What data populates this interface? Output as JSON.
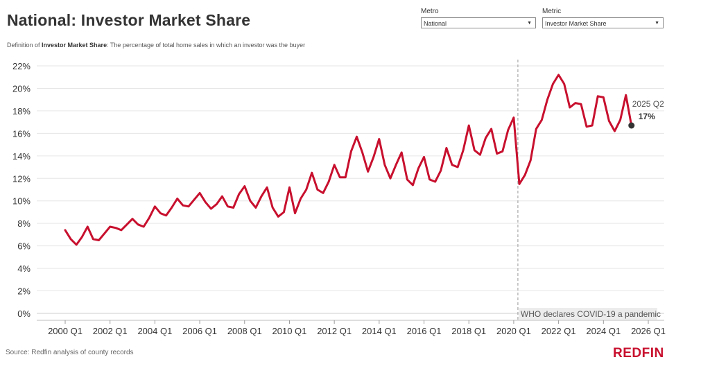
{
  "header": {
    "title": "National: Investor Market Share",
    "definition_prefix": "Definition of ",
    "definition_term": "Investor Market Share",
    "definition_text": ": The percentage of total home sales in which an investor was the buyer"
  },
  "filters": {
    "metro": {
      "label": "Metro",
      "value": "National"
    },
    "metric": {
      "label": "Metric",
      "value": "Investor Market Share"
    }
  },
  "footer": {
    "source": "Source: Redfin analysis of county records",
    "logo": "REDFIN"
  },
  "colors": {
    "line": "#c8102e",
    "grid": "#e6e6e6",
    "text": "#333333",
    "annotation_bg": "#ececec"
  },
  "chart_data": {
    "type": "line",
    "title": "National: Investor Market Share",
    "xlabel": "",
    "ylabel": "",
    "ylim": [
      0,
      22
    ],
    "yticks": [
      0,
      2,
      4,
      6,
      8,
      10,
      12,
      14,
      16,
      18,
      20,
      22
    ],
    "ytick_labels": [
      "0%",
      "2%",
      "4%",
      "6%",
      "8%",
      "10%",
      "12%",
      "14%",
      "16%",
      "18%",
      "20%",
      "22%"
    ],
    "xlim": [
      2000.0,
      2026.0
    ],
    "xticks": [
      2000,
      2002,
      2004,
      2006,
      2008,
      2010,
      2012,
      2014,
      2016,
      2018,
      2020,
      2022,
      2024,
      2026
    ],
    "xtick_labels": [
      "2000 Q1",
      "2002 Q1",
      "2004 Q1",
      "2006 Q1",
      "2008 Q1",
      "2010 Q1",
      "2012 Q1",
      "2014 Q1",
      "2016 Q1",
      "2018 Q1",
      "2020 Q1",
      "2022 Q1",
      "2024 Q1",
      "2026 Q1"
    ],
    "grid": true,
    "series": [
      {
        "name": "",
        "color": "#c8102e",
        "x": [
          2000.0,
          2000.25,
          2000.5,
          2000.75,
          2001.0,
          2001.25,
          2001.5,
          2001.75,
          2002.0,
          2002.25,
          2002.5,
          2002.75,
          2003.0,
          2003.25,
          2003.5,
          2003.75,
          2004.0,
          2004.25,
          2004.5,
          2004.75,
          2005.0,
          2005.25,
          2005.5,
          2005.75,
          2006.0,
          2006.25,
          2006.5,
          2006.75,
          2007.0,
          2007.25,
          2007.5,
          2007.75,
          2008.0,
          2008.25,
          2008.5,
          2008.75,
          2009.0,
          2009.25,
          2009.5,
          2009.75,
          2010.0,
          2010.25,
          2010.5,
          2010.75,
          2011.0,
          2011.25,
          2011.5,
          2011.75,
          2012.0,
          2012.25,
          2012.5,
          2012.75,
          2013.0,
          2013.25,
          2013.5,
          2013.75,
          2014.0,
          2014.25,
          2014.5,
          2014.75,
          2015.0,
          2015.25,
          2015.5,
          2015.75,
          2016.0,
          2016.25,
          2016.5,
          2016.75,
          2017.0,
          2017.25,
          2017.5,
          2017.75,
          2018.0,
          2018.25,
          2018.5,
          2018.75,
          2019.0,
          2019.25,
          2019.5,
          2019.75,
          2020.0,
          2020.25,
          2020.5,
          2020.75,
          2021.0,
          2021.25,
          2021.5,
          2021.75,
          2022.0,
          2022.25,
          2022.5,
          2022.75,
          2023.0,
          2023.25,
          2023.5,
          2023.75,
          2024.0,
          2024.25,
          2024.5,
          2024.75,
          2025.0,
          2025.25
        ],
        "values": [
          7.4,
          6.6,
          6.1,
          6.8,
          7.7,
          6.6,
          6.5,
          7.1,
          7.7,
          7.6,
          7.4,
          7.9,
          8.4,
          7.9,
          7.7,
          8.5,
          9.5,
          8.9,
          8.7,
          9.4,
          10.2,
          9.6,
          9.5,
          10.1,
          10.7,
          9.9,
          9.3,
          9.7,
          10.4,
          9.5,
          9.4,
          10.6,
          11.3,
          10.0,
          9.4,
          10.4,
          11.2,
          9.4,
          8.6,
          9.0,
          11.2,
          8.9,
          10.2,
          11.0,
          12.5,
          11.0,
          10.7,
          11.7,
          13.2,
          12.1,
          12.1,
          14.4,
          15.7,
          14.3,
          12.6,
          13.9,
          15.5,
          13.2,
          12.0,
          13.2,
          14.3,
          11.9,
          11.4,
          12.9,
          13.9,
          11.9,
          11.7,
          12.7,
          14.7,
          13.2,
          13.0,
          14.5,
          16.7,
          14.5,
          14.1,
          15.6,
          16.4,
          14.2,
          14.4,
          16.3,
          17.4,
          11.5,
          12.3,
          13.6,
          16.4,
          17.2,
          19.0,
          20.4,
          21.2,
          20.4,
          18.3,
          18.7,
          18.6,
          16.6,
          16.7,
          19.3,
          19.2,
          17.1,
          16.2,
          17.2,
          19.4,
          16.7
        ]
      }
    ],
    "annotations": [
      {
        "type": "vline",
        "x": 2020.0,
        "label": "WHO declares COVID-19 a pandemic"
      },
      {
        "type": "endpoint",
        "x": 2025.25,
        "y": 16.7,
        "label": "2025 Q2",
        "value_label": "17%"
      }
    ]
  }
}
